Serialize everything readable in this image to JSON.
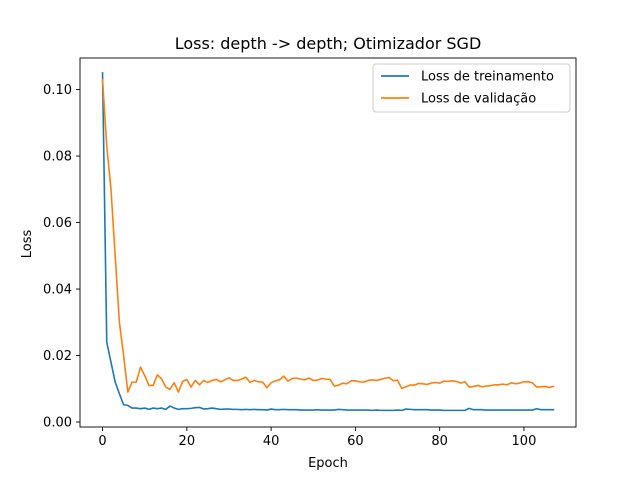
{
  "chart_data": {
    "type": "line",
    "title": "Loss: depth -> depth; Otimizador SGD",
    "xlabel": "Epoch",
    "ylabel": "Loss",
    "xlim": [
      -5.35,
      112.35
    ],
    "ylim": [
      -0.0015,
      0.1095
    ],
    "xticks": [
      0,
      20,
      40,
      60,
      80,
      100
    ],
    "yticks": [
      0.0,
      0.02,
      0.04,
      0.06,
      0.08,
      0.1
    ],
    "xtick_labels": [
      "0",
      "20",
      "40",
      "60",
      "80",
      "100"
    ],
    "ytick_labels": [
      "0.00",
      "0.02",
      "0.04",
      "0.06",
      "0.08",
      "0.10"
    ],
    "grid": false,
    "legend_position": "top-right",
    "series": [
      {
        "name": "Loss de treinamento",
        "color": "#1f77b4",
        "values": [
          0.105,
          0.024,
          0.018,
          0.012,
          0.0085,
          0.0052,
          0.005,
          0.0042,
          0.0042,
          0.004,
          0.0042,
          0.0038,
          0.0042,
          0.004,
          0.0042,
          0.0038,
          0.0048,
          0.0042,
          0.0038,
          0.004,
          0.004,
          0.0041,
          0.0043,
          0.0044,
          0.0039,
          0.004,
          0.0042,
          0.004,
          0.0038,
          0.0039,
          0.0039,
          0.0038,
          0.0038,
          0.0037,
          0.0038,
          0.0037,
          0.0038,
          0.0037,
          0.0037,
          0.0036,
          0.0039,
          0.0037,
          0.0037,
          0.0038,
          0.0037,
          0.0037,
          0.0037,
          0.0036,
          0.0036,
          0.0036,
          0.0036,
          0.0037,
          0.0036,
          0.0036,
          0.0036,
          0.0036,
          0.0038,
          0.0037,
          0.0036,
          0.0036,
          0.0036,
          0.0036,
          0.0036,
          0.0036,
          0.0035,
          0.0036,
          0.0035,
          0.0035,
          0.0035,
          0.0035,
          0.0036,
          0.0035,
          0.0039,
          0.0038,
          0.0037,
          0.0037,
          0.0037,
          0.0037,
          0.0036,
          0.0036,
          0.0036,
          0.0035,
          0.0035,
          0.0035,
          0.0035,
          0.0035,
          0.0035,
          0.0041,
          0.0037,
          0.0037,
          0.0037,
          0.0036,
          0.0036,
          0.0036,
          0.0036,
          0.0036,
          0.0036,
          0.0036,
          0.0036,
          0.0036,
          0.0036,
          0.0036,
          0.0036,
          0.004,
          0.0037,
          0.0037,
          0.0037,
          0.0037
        ]
      },
      {
        "name": "Loss de validação",
        "color": "#ff7f0e",
        "values": [
          0.103,
          0.083,
          0.07,
          0.05,
          0.03,
          0.02,
          0.009,
          0.012,
          0.012,
          0.0165,
          0.014,
          0.011,
          0.011,
          0.0142,
          0.013,
          0.0105,
          0.0098,
          0.0118,
          0.009,
          0.0122,
          0.0128,
          0.0105,
          0.0125,
          0.0112,
          0.0125,
          0.0119,
          0.0125,
          0.0128,
          0.0121,
          0.0127,
          0.0133,
          0.0125,
          0.0125,
          0.0129,
          0.0135,
          0.0119,
          0.0125,
          0.0121,
          0.012,
          0.0103,
          0.0118,
          0.0124,
          0.0127,
          0.0138,
          0.0123,
          0.0131,
          0.0132,
          0.0129,
          0.0127,
          0.0132,
          0.0125,
          0.0126,
          0.0131,
          0.0129,
          0.0128,
          0.0108,
          0.0111,
          0.0117,
          0.0115,
          0.0124,
          0.0124,
          0.0121,
          0.012,
          0.0125,
          0.0127,
          0.0125,
          0.0128,
          0.0132,
          0.0134,
          0.0124,
          0.0126,
          0.0101,
          0.0106,
          0.0111,
          0.0111,
          0.0116,
          0.0115,
          0.0113,
          0.0117,
          0.0119,
          0.0117,
          0.0123,
          0.0122,
          0.0124,
          0.0122,
          0.0117,
          0.0121,
          0.0105,
          0.0107,
          0.011,
          0.0106,
          0.0108,
          0.0109,
          0.0112,
          0.0112,
          0.0114,
          0.0112,
          0.0118,
          0.0115,
          0.0117,
          0.0121,
          0.0121,
          0.0118,
          0.0105,
          0.0106,
          0.0107,
          0.0104,
          0.0107
        ]
      }
    ]
  }
}
